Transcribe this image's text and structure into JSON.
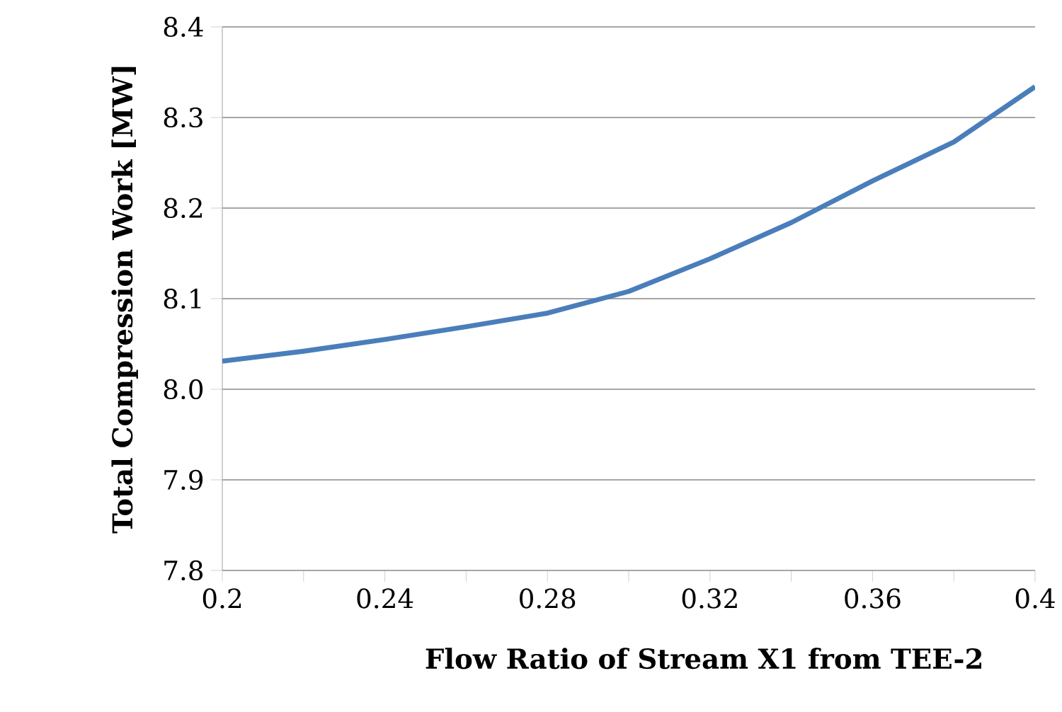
{
  "chart_data": {
    "type": "line",
    "xlabel": "Flow Ratio of Stream X1 from TEE-2",
    "ylabel": "Total Compression Work [MW]",
    "x": [
      0.2,
      0.22,
      0.24,
      0.26,
      0.28,
      0.3,
      0.32,
      0.34,
      0.36,
      0.38,
      0.4
    ],
    "series": [
      {
        "color": "#4a7ebb",
        "values": [
          8.031,
          8.042,
          8.055,
          8.069,
          8.084,
          8.108,
          8.144,
          8.184,
          8.23,
          8.273,
          8.334
        ]
      }
    ],
    "xlim": [
      0.2,
      0.4
    ],
    "xticks": [
      0.2,
      {
        "value": 0.22,
        "label": null
      },
      0.24,
      {
        "value": 0.26,
        "label": null
      },
      0.28,
      {
        "value": 0.3,
        "label": null
      },
      0.32,
      {
        "value": 0.34,
        "label": null
      },
      0.36,
      {
        "value": 0.38,
        "label": null
      },
      0.4
    ],
    "ylim": [
      7.8,
      8.4
    ],
    "yticks": [
      7.8,
      7.9,
      {
        "value": 8.0,
        "label": "8.0"
      },
      8.1,
      8.2,
      8.3,
      8.4
    ],
    "grid": "y",
    "marker": "none",
    "line_style": "solid"
  }
}
